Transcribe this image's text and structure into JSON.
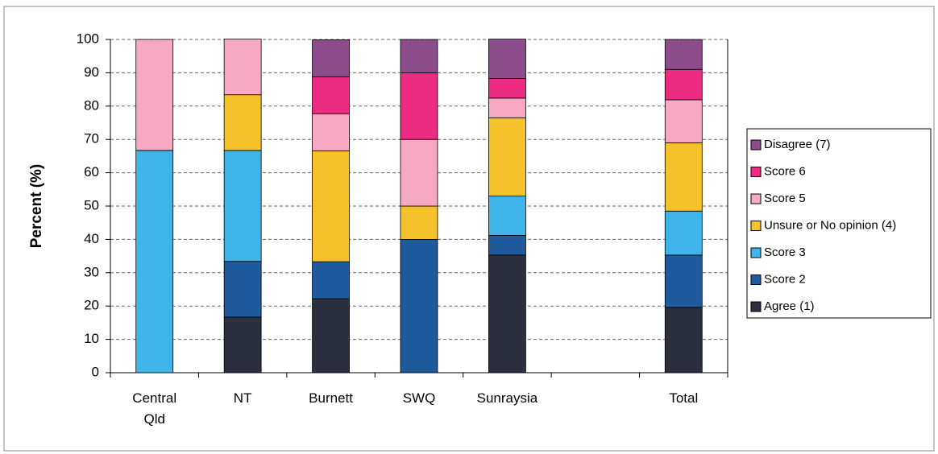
{
  "chart_data": {
    "type": "stacked-bar",
    "y_label": "Percent (%)",
    "categories": [
      "Central Qld",
      "NT",
      "Burnett",
      "SWQ",
      "Sunraysia",
      null,
      "Total"
    ],
    "series": [
      {
        "name": "Agree (1)",
        "color": "#2b2f3e",
        "values": [
          0,
          16.7,
          22.2,
          0,
          35.3,
          null,
          19.6
        ]
      },
      {
        "name": "Score 2",
        "color": "#1f5b9c",
        "values": [
          0,
          16.7,
          11.1,
          40,
          5.9,
          null,
          15.7
        ]
      },
      {
        "name": "Score 3",
        "color": "#3fb4e8",
        "values": [
          66.7,
          33.3,
          0,
          0,
          11.8,
          null,
          13.2
        ]
      },
      {
        "name": "Unsure or No opinion (4)",
        "color": "#f6c22b",
        "values": [
          0,
          16.7,
          33.3,
          10,
          23.5,
          null,
          20.5
        ]
      },
      {
        "name": "Score 5",
        "color": "#f7a9c3",
        "values": [
          33.3,
          16.7,
          11.1,
          20,
          5.9,
          null,
          12.9
        ]
      },
      {
        "name": "Score 6",
        "color": "#ec2c80",
        "values": [
          0,
          0,
          11.1,
          20,
          5.9,
          null,
          9.1
        ]
      },
      {
        "name": "Disagree (7)",
        "color": "#8c4c8c",
        "values": [
          0,
          0,
          11.1,
          10,
          11.8,
          null,
          9
        ]
      }
    ],
    "ylim": [
      0,
      100
    ],
    "yticks": [
      0,
      10,
      20,
      30,
      40,
      50,
      60,
      70,
      80,
      90,
      100
    ],
    "grid": true,
    "legend": "right"
  }
}
